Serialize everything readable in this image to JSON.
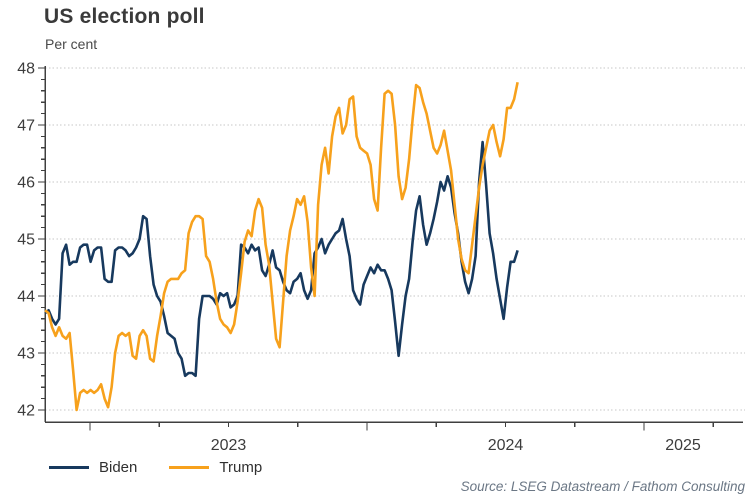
{
  "header": {
    "title": "US election poll",
    "unit": "Per cent"
  },
  "legend": {
    "items": [
      {
        "label": "Biden",
        "color": "#17395e"
      },
      {
        "label": "Trump",
        "color": "#f7a11c"
      }
    ]
  },
  "footer": {
    "source": "Source: LSEG Datastream / Fathom Consulting"
  },
  "chart_data": {
    "type": "line",
    "title": "US election poll",
    "ylabel": "Per cent",
    "ylim": [
      42,
      48
    ],
    "y_major_step": 1,
    "y_minor_step": 0.2,
    "grid": "horizontal-dotted",
    "legend_position": "bottom-left",
    "x_base_year": 2023,
    "x_year_labels": [
      2023,
      2024,
      2025
    ],
    "xlim": [
      2022.838,
      2025.36
    ],
    "x_start": 2022.838,
    "x_step_years": 0.012635,
    "series": [
      {
        "name": "Biden",
        "color": "#17395e",
        "values": [
          43.7,
          43.75,
          43.6,
          43.5,
          43.6,
          44.75,
          44.9,
          44.55,
          44.6,
          44.6,
          44.85,
          44.9,
          44.9,
          44.6,
          44.8,
          44.85,
          44.85,
          44.3,
          44.25,
          44.25,
          44.8,
          44.85,
          44.85,
          44.8,
          44.7,
          44.75,
          44.85,
          45.0,
          45.4,
          45.35,
          44.7,
          44.2,
          44.0,
          43.9,
          43.65,
          43.35,
          43.3,
          43.25,
          43.0,
          42.9,
          42.6,
          42.65,
          42.65,
          42.6,
          43.6,
          44.0,
          44.0,
          44.0,
          43.95,
          43.85,
          44.05,
          44.0,
          44.05,
          43.8,
          43.85,
          44.0,
          44.9,
          44.85,
          44.75,
          44.9,
          44.8,
          44.85,
          44.45,
          44.35,
          44.55,
          44.8,
          44.5,
          44.45,
          44.25,
          44.1,
          44.05,
          44.25,
          44.3,
          44.4,
          44.1,
          43.95,
          44.1,
          44.75,
          44.85,
          45.0,
          44.75,
          44.9,
          45.0,
          45.1,
          45.15,
          45.35,
          45.0,
          44.7,
          44.1,
          43.95,
          43.85,
          44.2,
          44.35,
          44.5,
          44.4,
          44.55,
          44.45,
          44.45,
          44.3,
          44.1,
          43.55,
          42.95,
          43.5,
          44.0,
          44.3,
          44.95,
          45.5,
          45.75,
          45.25,
          44.9,
          45.1,
          45.35,
          45.65,
          46.0,
          45.85,
          46.1,
          45.9,
          45.45,
          45.1,
          44.6,
          44.25,
          44.05,
          44.3,
          44.7,
          46.0,
          46.7,
          45.95,
          45.1,
          44.75,
          44.3,
          43.95,
          43.6,
          44.15,
          44.6,
          44.6,
          44.8
        ]
      },
      {
        "name": "Trump",
        "color": "#f7a11c",
        "values": [
          43.75,
          43.7,
          43.45,
          43.3,
          43.45,
          43.3,
          43.25,
          43.35,
          42.7,
          42.0,
          42.3,
          42.35,
          42.3,
          42.35,
          42.3,
          42.35,
          42.45,
          42.2,
          42.05,
          42.4,
          43.0,
          43.3,
          43.35,
          43.3,
          43.35,
          42.95,
          42.9,
          43.3,
          43.4,
          43.3,
          42.9,
          42.85,
          43.3,
          43.65,
          44.05,
          44.25,
          44.3,
          44.3,
          44.3,
          44.4,
          44.45,
          45.1,
          45.3,
          45.4,
          45.4,
          45.35,
          44.7,
          44.6,
          44.3,
          43.9,
          43.6,
          43.5,
          43.45,
          43.35,
          43.5,
          43.9,
          44.4,
          44.95,
          45.15,
          45.05,
          45.5,
          45.7,
          45.55,
          44.9,
          44.55,
          43.9,
          43.25,
          43.1,
          43.9,
          44.7,
          45.15,
          45.4,
          45.7,
          45.6,
          45.75,
          45.3,
          44.5,
          44.0,
          45.6,
          46.3,
          46.6,
          46.15,
          46.8,
          47.15,
          47.3,
          46.85,
          47.0,
          47.45,
          47.5,
          46.8,
          46.6,
          46.55,
          46.5,
          46.3,
          45.7,
          45.5,
          46.6,
          47.55,
          47.6,
          47.55,
          47.0,
          46.1,
          45.7,
          45.9,
          46.4,
          47.1,
          47.7,
          47.65,
          47.4,
          47.2,
          46.9,
          46.6,
          46.5,
          46.65,
          46.9,
          46.55,
          46.2,
          45.6,
          45.0,
          44.65,
          44.45,
          44.4,
          44.9,
          45.4,
          45.9,
          46.3,
          46.6,
          46.9,
          47.0,
          46.7,
          46.45,
          46.75,
          47.3,
          47.3,
          47.45,
          47.75
        ]
      }
    ]
  }
}
